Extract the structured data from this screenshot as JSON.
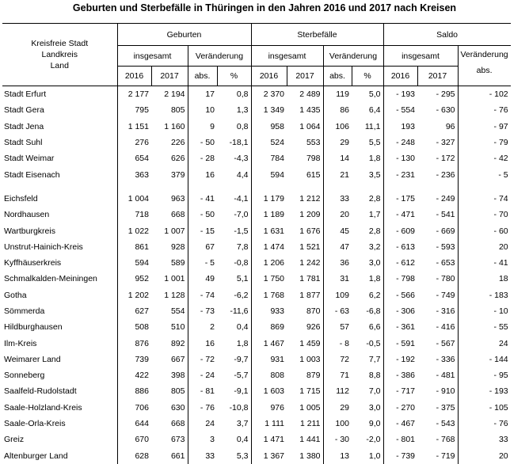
{
  "title": "Geburten und Sterbefälle in Thüringen in den Jahren 2016 und 2017 nach Kreisen",
  "header": {
    "region_lines": [
      "Kreisfreie Stadt",
      "Landkreis",
      "Land"
    ],
    "groups": [
      "Geburten",
      "Sterbefälle",
      "Saldo"
    ],
    "insgesamt": "insgesamt",
    "veraenderung": "Veränderung",
    "abs": "abs.",
    "percent": "%",
    "year1": "2016",
    "year2": "2017"
  },
  "rows": [
    {
      "name": "Stadt Erfurt",
      "g16": "2 177",
      "g17": "2 194",
      "gabs": "17",
      "gpct": "0,8",
      "s16": "2 370",
      "s17": "2 489",
      "sabs": "119",
      "spct": "5,0",
      "sa16": "- 193",
      "sa17": "- 295",
      "saabs": "- 102"
    },
    {
      "name": "Stadt Gera",
      "g16": "795",
      "g17": "805",
      "gabs": "10",
      "gpct": "1,3",
      "s16": "1 349",
      "s17": "1 435",
      "sabs": "86",
      "spct": "6,4",
      "sa16": "- 554",
      "sa17": "- 630",
      "saabs": "- 76"
    },
    {
      "name": "Stadt Jena",
      "g16": "1 151",
      "g17": "1 160",
      "gabs": "9",
      "gpct": "0,8",
      "s16": "958",
      "s17": "1 064",
      "sabs": "106",
      "spct": "11,1",
      "sa16": "193",
      "sa17": "96",
      "saabs": "- 97"
    },
    {
      "name": "Stadt Suhl",
      "g16": "276",
      "g17": "226",
      "gabs": "- 50",
      "gpct": "-18,1",
      "s16": "524",
      "s17": "553",
      "sabs": "29",
      "spct": "5,5",
      "sa16": "- 248",
      "sa17": "- 327",
      "saabs": "- 79"
    },
    {
      "name": "Stadt Weimar",
      "g16": "654",
      "g17": "626",
      "gabs": "- 28",
      "gpct": "-4,3",
      "s16": "784",
      "s17": "798",
      "sabs": "14",
      "spct": "1,8",
      "sa16": "- 130",
      "sa17": "- 172",
      "saabs": "- 42"
    },
    {
      "name": "Stadt Eisenach",
      "g16": "363",
      "g17": "379",
      "gabs": "16",
      "gpct": "4,4",
      "s16": "594",
      "s17": "615",
      "sabs": "21",
      "spct": "3,5",
      "sa16": "- 231",
      "sa17": "- 236",
      "saabs": "- 5"
    },
    {
      "gap": true
    },
    {
      "name": "Eichsfeld",
      "g16": "1 004",
      "g17": "963",
      "gabs": "- 41",
      "gpct": "-4,1",
      "s16": "1 179",
      "s17": "1 212",
      "sabs": "33",
      "spct": "2,8",
      "sa16": "- 175",
      "sa17": "- 249",
      "saabs": "- 74"
    },
    {
      "name": "Nordhausen",
      "g16": "718",
      "g17": "668",
      "gabs": "- 50",
      "gpct": "-7,0",
      "s16": "1 189",
      "s17": "1 209",
      "sabs": "20",
      "spct": "1,7",
      "sa16": "- 471",
      "sa17": "- 541",
      "saabs": "- 70"
    },
    {
      "name": "Wartburgkreis",
      "g16": "1 022",
      "g17": "1 007",
      "gabs": "- 15",
      "gpct": "-1,5",
      "s16": "1 631",
      "s17": "1 676",
      "sabs": "45",
      "spct": "2,8",
      "sa16": "- 609",
      "sa17": "- 669",
      "saabs": "- 60"
    },
    {
      "name": "Unstrut-Hainich-Kreis",
      "g16": "861",
      "g17": "928",
      "gabs": "67",
      "gpct": "7,8",
      "s16": "1 474",
      "s17": "1 521",
      "sabs": "47",
      "spct": "3,2",
      "sa16": "- 613",
      "sa17": "- 593",
      "saabs": "20"
    },
    {
      "name": "Kyffhäuserkreis",
      "g16": "594",
      "g17": "589",
      "gabs": "- 5",
      "gpct": "-0,8",
      "s16": "1 206",
      "s17": "1 242",
      "sabs": "36",
      "spct": "3,0",
      "sa16": "- 612",
      "sa17": "- 653",
      "saabs": "- 41"
    },
    {
      "name": "Schmalkalden-Meiningen",
      "g16": "952",
      "g17": "1 001",
      "gabs": "49",
      "gpct": "5,1",
      "s16": "1 750",
      "s17": "1 781",
      "sabs": "31",
      "spct": "1,8",
      "sa16": "- 798",
      "sa17": "- 780",
      "saabs": "18"
    },
    {
      "name": "Gotha",
      "g16": "1 202",
      "g17": "1 128",
      "gabs": "- 74",
      "gpct": "-6,2",
      "s16": "1 768",
      "s17": "1 877",
      "sabs": "109",
      "spct": "6,2",
      "sa16": "- 566",
      "sa17": "- 749",
      "saabs": "- 183"
    },
    {
      "name": "Sömmerda",
      "g16": "627",
      "g17": "554",
      "gabs": "- 73",
      "gpct": "-11,6",
      "s16": "933",
      "s17": "870",
      "sabs": "- 63",
      "spct": "-6,8",
      "sa16": "- 306",
      "sa17": "- 316",
      "saabs": "- 10"
    },
    {
      "name": "Hildburghausen",
      "g16": "508",
      "g17": "510",
      "gabs": "2",
      "gpct": "0,4",
      "s16": "869",
      "s17": "926",
      "sabs": "57",
      "spct": "6,6",
      "sa16": "- 361",
      "sa17": "- 416",
      "saabs": "- 55"
    },
    {
      "name": "Ilm-Kreis",
      "g16": "876",
      "g17": "892",
      "gabs": "16",
      "gpct": "1,8",
      "s16": "1 467",
      "s17": "1 459",
      "sabs": "- 8",
      "spct": "-0,5",
      "sa16": "- 591",
      "sa17": "- 567",
      "saabs": "24"
    },
    {
      "name": "Weimarer Land",
      "g16": "739",
      "g17": "667",
      "gabs": "- 72",
      "gpct": "-9,7",
      "s16": "931",
      "s17": "1 003",
      "sabs": "72",
      "spct": "7,7",
      "sa16": "- 192",
      "sa17": "- 336",
      "saabs": "- 144"
    },
    {
      "name": "Sonneberg",
      "g16": "422",
      "g17": "398",
      "gabs": "- 24",
      "gpct": "-5,7",
      "s16": "808",
      "s17": "879",
      "sabs": "71",
      "spct": "8,8",
      "sa16": "- 386",
      "sa17": "- 481",
      "saabs": "- 95"
    },
    {
      "name": "Saalfeld-Rudolstadt",
      "g16": "886",
      "g17": "805",
      "gabs": "- 81",
      "gpct": "-9,1",
      "s16": "1 603",
      "s17": "1 715",
      "sabs": "112",
      "spct": "7,0",
      "sa16": "- 717",
      "sa17": "- 910",
      "saabs": "- 193"
    },
    {
      "name": "Saale-Holzland-Kreis",
      "g16": "706",
      "g17": "630",
      "gabs": "- 76",
      "gpct": "-10,8",
      "s16": "976",
      "s17": "1 005",
      "sabs": "29",
      "spct": "3,0",
      "sa16": "- 270",
      "sa17": "- 375",
      "saabs": "- 105"
    },
    {
      "name": "Saale-Orla-Kreis",
      "g16": "644",
      "g17": "668",
      "gabs": "24",
      "gpct": "3,7",
      "s16": "1 111",
      "s17": "1 211",
      "sabs": "100",
      "spct": "9,0",
      "sa16": "- 467",
      "sa17": "- 543",
      "saabs": "- 76"
    },
    {
      "name": "Greiz",
      "g16": "670",
      "g17": "673",
      "gabs": "3",
      "gpct": "0,4",
      "s16": "1 471",
      "s17": "1 441",
      "sabs": "- 30",
      "spct": "-2,0",
      "sa16": "- 801",
      "sa17": "- 768",
      "saabs": "33"
    },
    {
      "name": "Altenburger Land",
      "g16": "628",
      "g17": "661",
      "gabs": "33",
      "gpct": "5,3",
      "s16": "1 367",
      "s17": "1 380",
      "sabs": "13",
      "spct": "1,0",
      "sa16": "- 739",
      "sa17": "- 719",
      "saabs": "20"
    }
  ]
}
